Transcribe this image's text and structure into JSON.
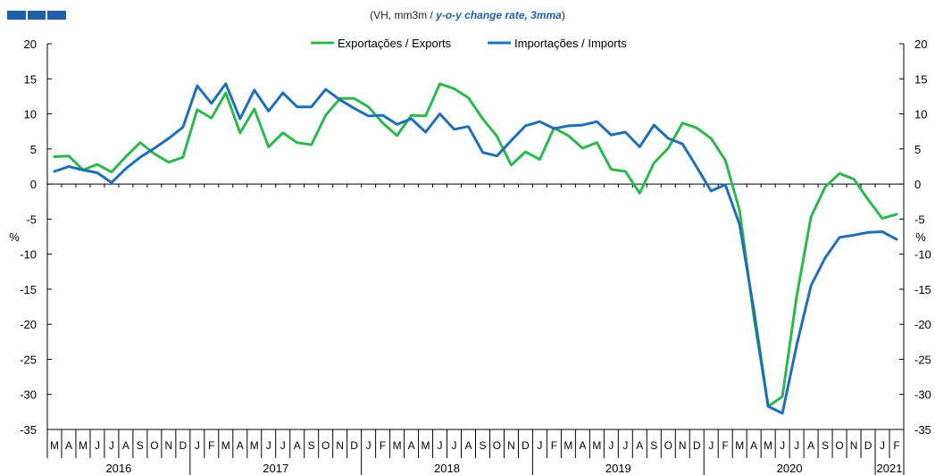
{
  "subtitle": {
    "plain": "(VH, mm3m / ",
    "emphasis": "y-o-y change rate, 3mma",
    "close": ")"
  },
  "colors": {
    "exports": "#2db84d",
    "imports": "#1f6fb8",
    "axis": "#000000",
    "brand": "#1f5fa6"
  },
  "chart_data": {
    "type": "line",
    "title": "",
    "ylabel_left": "%",
    "ylabel_right": "%",
    "ylim": [
      -35,
      20
    ],
    "yticks": [
      20,
      15,
      10,
      5,
      0,
      -5,
      -10,
      -15,
      -20,
      -25,
      -30,
      -35
    ],
    "legend_position": "top-center",
    "months": [
      "M",
      "A",
      "M",
      "J",
      "J",
      "A",
      "S",
      "O",
      "N",
      "D",
      "J",
      "F",
      "M",
      "A",
      "M",
      "J",
      "J",
      "A",
      "S",
      "O",
      "N",
      "D",
      "J",
      "F",
      "M",
      "A",
      "M",
      "J",
      "J",
      "A",
      "S",
      "O",
      "N",
      "D",
      "J",
      "F",
      "M",
      "A",
      "M",
      "J",
      "J",
      "A",
      "S",
      "O",
      "N",
      "D",
      "J",
      "F",
      "M",
      "A",
      "M",
      "J",
      "J",
      "A",
      "S",
      "O",
      "N",
      "D",
      "J",
      "F"
    ],
    "years": [
      {
        "label": "2016",
        "start": 0,
        "count": 10
      },
      {
        "label": "2017",
        "start": 10,
        "count": 12
      },
      {
        "label": "2018",
        "start": 22,
        "count": 12
      },
      {
        "label": "2019",
        "start": 34,
        "count": 12
      },
      {
        "label": "2020",
        "start": 46,
        "count": 12
      },
      {
        "label": "2021",
        "start": 58,
        "count": 2
      }
    ],
    "series": [
      {
        "name": "Exportações / Exports",
        "color": "#2db84d",
        "values": [
          3.9,
          4.0,
          2.0,
          2.8,
          1.7,
          3.9,
          5.9,
          4.3,
          3.1,
          3.8,
          10.6,
          9.4,
          13.0,
          7.3,
          10.7,
          5.3,
          7.3,
          5.9,
          5.6,
          9.8,
          12.2,
          12.2,
          11.0,
          8.7,
          6.9,
          9.8,
          9.7,
          14.3,
          13.6,
          12.3,
          9.3,
          6.8,
          2.7,
          4.6,
          3.5,
          8.0,
          6.9,
          5.1,
          5.9,
          2.1,
          1.8,
          -1.3,
          3.0,
          5.1,
          8.7,
          8.0,
          6.5,
          3.4,
          -3.8,
          -19.0,
          -31.7,
          -30.3,
          -16.0,
          -4.7,
          -0.4,
          1.5,
          0.7,
          -2.2,
          -4.9,
          -4.3
        ]
      },
      {
        "name": "Importações / Imports",
        "color": "#1f6fb8",
        "values": [
          1.8,
          2.5,
          2.0,
          1.6,
          0.2,
          2.2,
          3.8,
          5.1,
          6.5,
          8.1,
          14.0,
          11.5,
          14.3,
          9.3,
          13.4,
          10.4,
          13.0,
          11.0,
          11.0,
          13.5,
          12.0,
          10.8,
          9.7,
          9.8,
          8.5,
          9.3,
          7.4,
          10.0,
          7.8,
          8.2,
          4.5,
          4.0,
          6.2,
          8.3,
          8.9,
          7.9,
          8.3,
          8.4,
          8.9,
          7.0,
          7.4,
          5.3,
          8.4,
          6.5,
          5.7,
          2.4,
          -1.0,
          -0.1,
          -5.8,
          -18.0,
          -31.7,
          -32.7,
          -23.0,
          -14.5,
          -10.5,
          -7.6,
          -7.3,
          -6.9,
          -6.8,
          -7.9
        ]
      }
    ]
  }
}
